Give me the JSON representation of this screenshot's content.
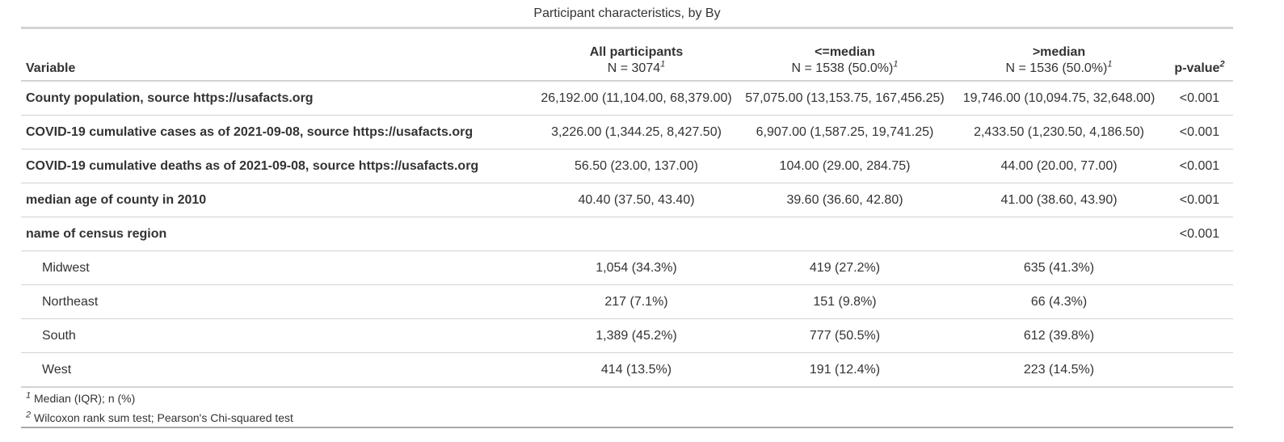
{
  "caption": "Participant characteristics, by By",
  "header": {
    "variable": "Variable",
    "columns": [
      {
        "label": "All participants",
        "n": "N = 3074",
        "sup": "1"
      },
      {
        "label": "<=median",
        "n": "N = 1538 (50.0%)",
        "sup": "1"
      },
      {
        "label": ">median",
        "n": "N = 1536 (50.0%)",
        "sup": "1"
      }
    ],
    "pvalue": {
      "label": "p-value",
      "sup": "2"
    }
  },
  "rows": [
    {
      "label": "County population, source https://usafacts.org",
      "bold": true,
      "values": [
        "26,192.00 (11,104.00, 68,379.00)",
        "57,075.00 (13,153.75, 167,456.25)",
        "19,746.00 (10,094.75, 32,648.00)"
      ],
      "p": "<0.001"
    },
    {
      "label": "COVID-19 cumulative cases as of 2021-09-08, source https://usafacts.org",
      "bold": true,
      "values": [
        "3,226.00 (1,344.25, 8,427.50)",
        "6,907.00 (1,587.25, 19,741.25)",
        "2,433.50 (1,230.50, 4,186.50)"
      ],
      "p": "<0.001"
    },
    {
      "label": "COVID-19 cumulative deaths as of 2021-09-08, source https://usafacts.org",
      "bold": true,
      "values": [
        "56.50 (23.00, 137.00)",
        "104.00 (29.00, 284.75)",
        "44.00 (20.00, 77.00)"
      ],
      "p": "<0.001"
    },
    {
      "label": "median age of county in 2010",
      "bold": true,
      "values": [
        "40.40 (37.50, 43.40)",
        "39.60 (36.60, 42.80)",
        "41.00 (38.60, 43.90)"
      ],
      "p": "<0.001"
    },
    {
      "label": "name of census region",
      "bold": true,
      "values": [
        "",
        "",
        ""
      ],
      "p": "<0.001"
    },
    {
      "label": "Midwest",
      "bold": false,
      "values": [
        "1,054 (34.3%)",
        "419 (27.2%)",
        "635 (41.3%)"
      ],
      "p": ""
    },
    {
      "label": "Northeast",
      "bold": false,
      "values": [
        "217 (7.1%)",
        "151 (9.8%)",
        "66 (4.3%)"
      ],
      "p": ""
    },
    {
      "label": "South",
      "bold": false,
      "values": [
        "1,389 (45.2%)",
        "777 (50.5%)",
        "612 (39.8%)"
      ],
      "p": ""
    },
    {
      "label": "West",
      "bold": false,
      "values": [
        "414 (13.5%)",
        "191 (12.4%)",
        "223 (14.5%)"
      ],
      "p": ""
    }
  ],
  "footnotes": [
    {
      "sup": "1",
      "text": "Median (IQR); n (%)"
    },
    {
      "sup": "2",
      "text": "Wilcoxon rank sum test; Pearson's Chi-squared test"
    }
  ]
}
